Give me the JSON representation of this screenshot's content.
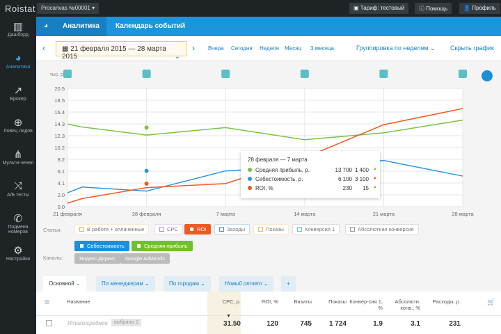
{
  "top": {
    "logo": "Roistat",
    "project": "Procanvas №00001",
    "tariff": "Тариф: тестовый",
    "help": "Помощь",
    "profile": "Профиль"
  },
  "sidebar": [
    {
      "label": "Дашборд",
      "icon": "bar-chart-icon"
    },
    {
      "label": "Аналитика",
      "icon": "pie-chart-icon"
    },
    {
      "label": "Брокер",
      "icon": "trend-icon"
    },
    {
      "label": "Ловец лидов",
      "icon": "crosshair-icon"
    },
    {
      "label": "Мульти-ченел",
      "icon": "hierarchy-icon"
    },
    {
      "label": "А/Б тесты",
      "icon": "shuffle-icon"
    },
    {
      "label": "Подмена номеров",
      "icon": "phone-icon"
    },
    {
      "label": "Настройки",
      "icon": "gear-icon"
    }
  ],
  "nav": {
    "tabs": [
      "Аналитика",
      "Календарь событий"
    ]
  },
  "toolbar": {
    "date_range": "21 февраля 2015 — 28 марта 2015",
    "periods": [
      "Вчера",
      "Сегодня",
      "Неделя",
      "Месяц",
      "3 месяца"
    ],
    "grouping": "Группировка по неделям",
    "hide_chart": "Скрыть график"
  },
  "chart_data": {
    "type": "line",
    "ylabel": "тыс. р.",
    "ylim": [
      0,
      20.5
    ],
    "yticks": [
      "20.5",
      "18.5",
      "16.4",
      "14.3",
      "12.3",
      "10.2",
      "8.2",
      "6.1",
      "4.1",
      "2.0",
      "0.0"
    ],
    "xticks": [
      "21 февраля",
      "28 февраля",
      "7 марта",
      "14 марта",
      "21 марта",
      "28 марта"
    ],
    "x_days": [
      0,
      1.3,
      7,
      14,
      21,
      28,
      35
    ],
    "series": [
      {
        "name": "Средняя прибыль",
        "color": "#7ac143",
        "values": [
          14.3,
          13.8,
          12.4,
          13.7,
          11.6,
          12.8,
          15.0
        ]
      },
      {
        "name": "Себестоимость",
        "color": "#2c97de",
        "values": [
          2.4,
          3.4,
          2.7,
          6.2,
          7.0,
          8.0,
          5.3
        ]
      },
      {
        "name": "ROI",
        "color": "#ef5a24",
        "values": [
          0.6,
          1.4,
          3.3,
          4.0,
          8.5,
          14.2,
          17.0
        ]
      }
    ]
  },
  "tooltip": {
    "title": "28 февраля — 7 марта",
    "rows": [
      {
        "label": "Средняя прибыль, р.",
        "v1": "13 700",
        "v2": "1 400",
        "color": "#7ac143",
        "arrow": "▲"
      },
      {
        "label": "Себестоимость, р.",
        "v1": "6 100",
        "v2": "3 100",
        "color": "#2c97de",
        "arrow": "▲"
      },
      {
        "label": "ROI, %",
        "v1": "230",
        "v2": "15",
        "color": "#ef5a24",
        "arrow": "▲"
      }
    ]
  },
  "filters": {
    "stats_label": "Статьи:",
    "channels_label": "Каналы:",
    "stats": [
      "В работе + оплаченные",
      "CPC",
      "ROI",
      "Заходы",
      "Показы",
      "Конверсия 1",
      "Абсолютная конверсия",
      "Себестоимость",
      "Средняя прибыль"
    ],
    "channels": [
      "Яндекс.Директ",
      "Google.AdWords"
    ]
  },
  "report_tabs": [
    "Основной",
    "По менеджерам",
    "По городам",
    "Новый отчет",
    "+"
  ],
  "table": {
    "headers": [
      "Название",
      "CPC, р.",
      "ROI, %",
      "Визиты",
      "Показы",
      "Конвер-сия 1, %",
      "Абсолютн. конв., %",
      "Расходы, р."
    ],
    "row": {
      "name": "Итого/среднее",
      "badge": "выбраны 2",
      "values": [
        "31.50",
        "120",
        "745",
        "1 724",
        "1.9",
        "3.1",
        "231"
      ]
    }
  }
}
